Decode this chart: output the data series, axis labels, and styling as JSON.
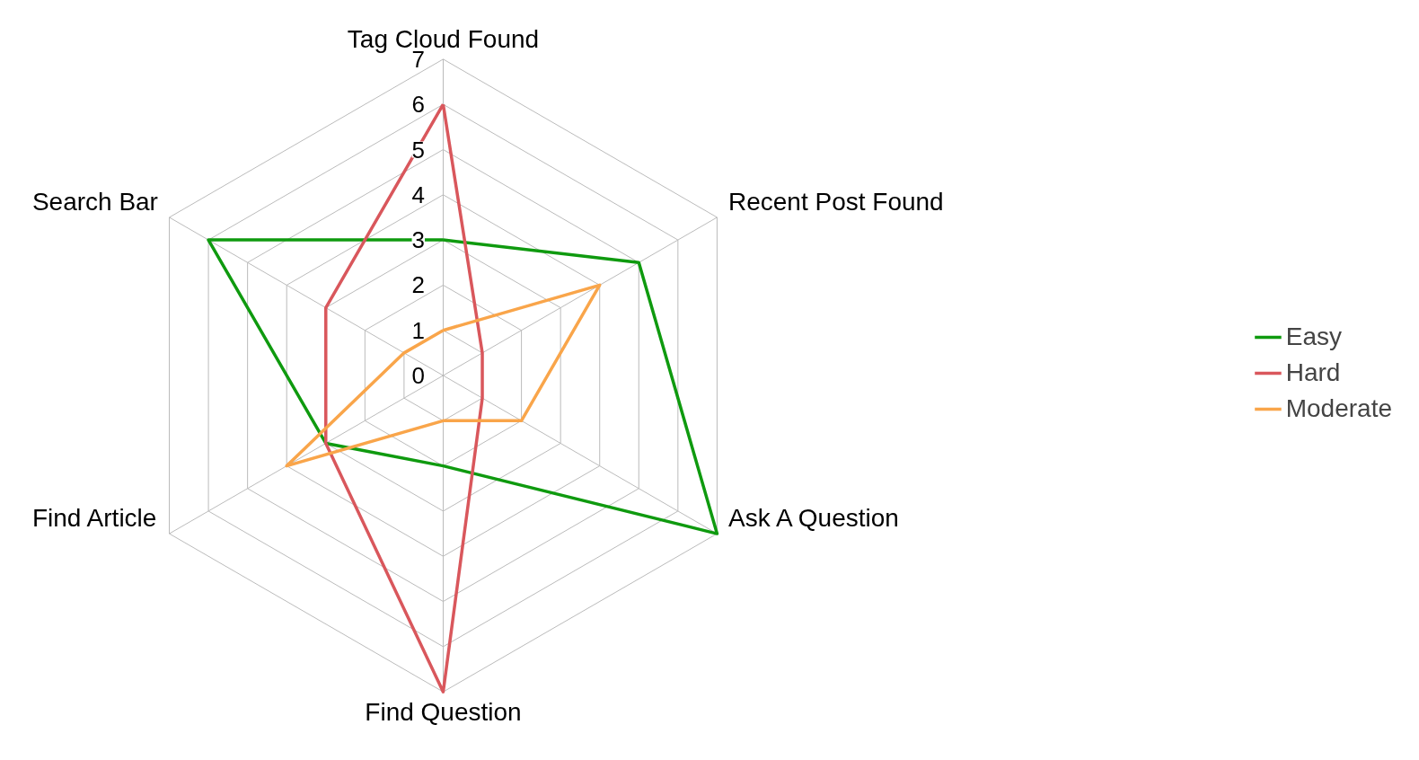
{
  "chart_data": {
    "type": "radar",
    "categories": [
      "Tag Cloud Found",
      "Recent Post Found",
      "Ask A Question",
      "Find Question",
      "Find Article",
      "Search Bar"
    ],
    "series": [
      {
        "name": "Easy",
        "color": "#0f9a0f",
        "values": [
          3,
          5,
          7,
          2,
          3,
          6
        ]
      },
      {
        "name": "Hard",
        "color": "#d9575c",
        "values": [
          6,
          1,
          1,
          7,
          3,
          3
        ]
      },
      {
        "name": "Moderate",
        "color": "#f9a54a",
        "values": [
          1,
          4,
          2,
          1,
          4,
          1
        ]
      }
    ],
    "ylim": [
      0,
      7
    ],
    "yticks": [
      0,
      1,
      2,
      3,
      4,
      5,
      6,
      7
    ],
    "grid": true,
    "legend": "right",
    "marker": "none",
    "line_style": "solid"
  }
}
